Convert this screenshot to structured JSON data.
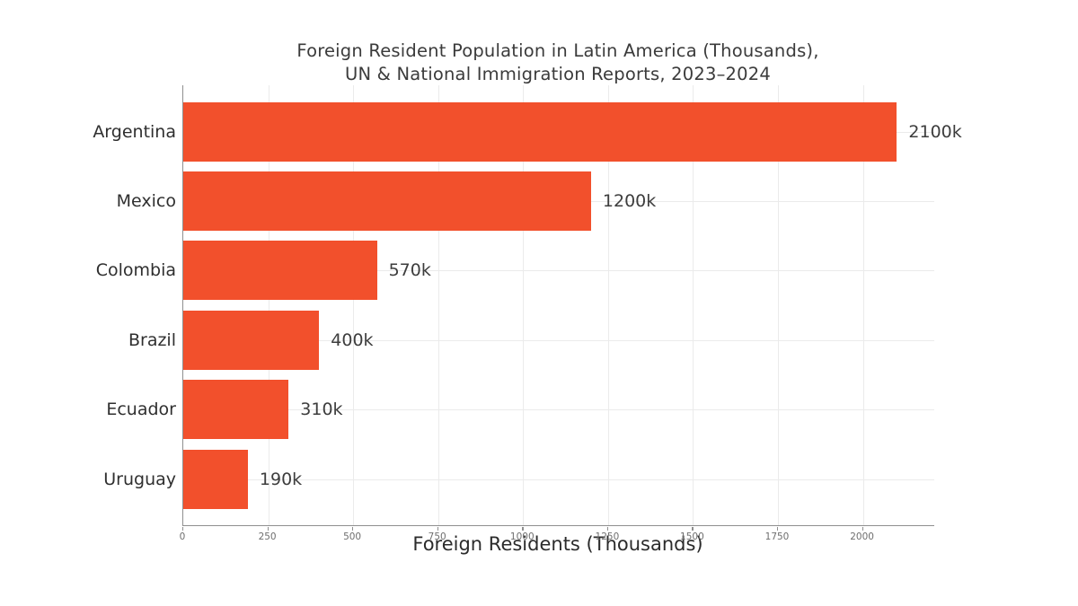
{
  "page": {
    "background_color": "#ffffff"
  },
  "chart_data": {
    "type": "bar",
    "orientation": "horizontal",
    "title_line1": "Foreign Resident Population in Latin America (Thousands),",
    "title_line2": "UN & National Immigration Reports, 2023–2024",
    "xlabel": "Foreign Residents (Thousands)",
    "ylabel": "",
    "categories": [
      "Argentina",
      "Mexico",
      "Colombia",
      "Brazil",
      "Ecuador",
      "Uruguay"
    ],
    "values": [
      2100,
      1200,
      570,
      400,
      310,
      190
    ],
    "value_labels": [
      "2100k",
      "1200k",
      "570k",
      "400k",
      "310k",
      "190k"
    ],
    "xticks": [
      0,
      250,
      500,
      750,
      1000,
      1250,
      1500,
      1750,
      2000
    ],
    "xlim": [
      0,
      2210
    ],
    "grid": true,
    "legend": "none",
    "bar_color": "#f2502c",
    "grid_color": "#ebebeb",
    "spine_color": "#8f8f8f",
    "value_label_color": "#3d3d3d",
    "category_label_color": "#2f2f2f",
    "tick_label_color": "#6e6e6e",
    "title_color": "#3b3b3b"
  }
}
